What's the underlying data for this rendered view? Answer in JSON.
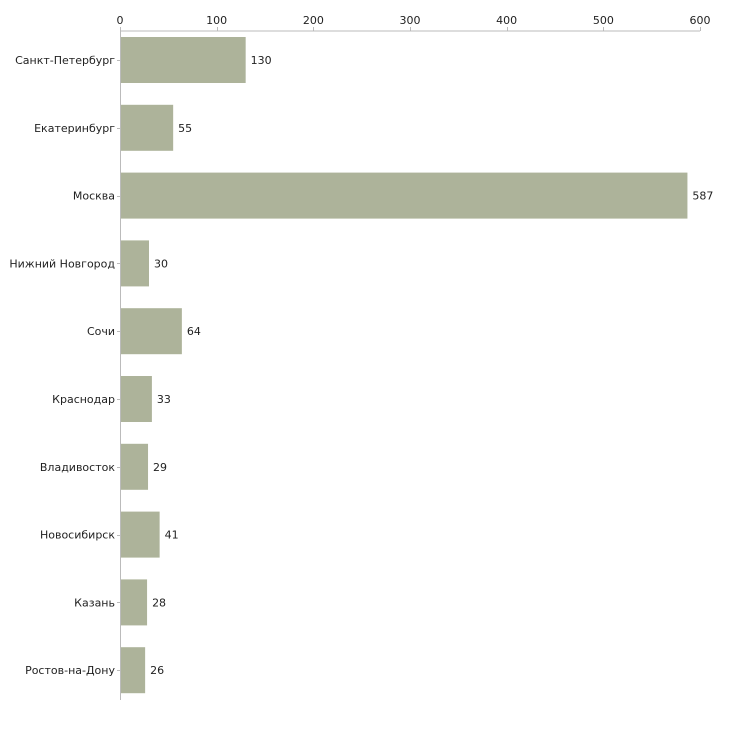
{
  "chart_data": {
    "type": "bar",
    "orientation": "horizontal",
    "title": "",
    "xlabel": "",
    "ylabel": "",
    "xlim": [
      0,
      600
    ],
    "xticks": [
      0,
      100,
      200,
      300,
      400,
      500,
      600
    ],
    "x_axis_position": "top",
    "grid": false,
    "legend": "none",
    "categories": [
      "Санкт-Петербург",
      "Екатеринбург",
      "Москва",
      "Нижний Новгород",
      "Сочи",
      "Краснодар",
      "Владивосток",
      "Новосибирск",
      "Казань",
      "Ростов-на-Дону"
    ],
    "values": [
      130,
      55,
      587,
      30,
      64,
      33,
      29,
      41,
      28,
      26
    ],
    "bar_color": "#adb39a",
    "axis_color": "#bbbbbb"
  }
}
